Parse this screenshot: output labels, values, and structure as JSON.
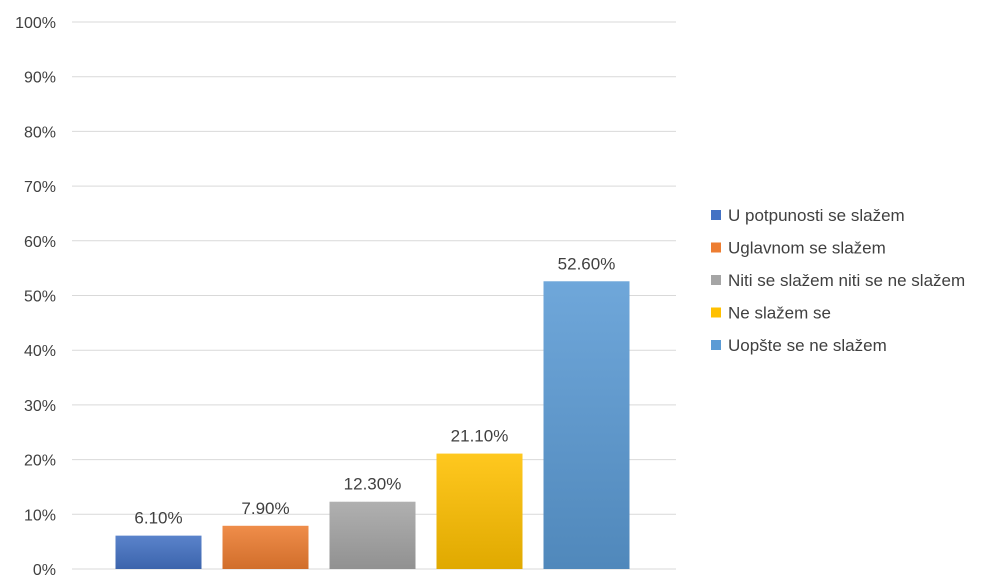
{
  "chart_data": {
    "type": "bar",
    "categories": [
      "U potpunosti se slažem",
      "Uglavnom se slažem",
      "Niti se slažem niti se ne slažem",
      "Ne slažem se",
      "Uopšte se ne slažem"
    ],
    "values": [
      6.1,
      7.9,
      12.3,
      21.1,
      52.6
    ],
    "data_labels": [
      "6.10%",
      "7.90%",
      "12.30%",
      "21.10%",
      "52.60%"
    ],
    "colors": [
      "#4472c4",
      "#ed7d31",
      "#a5a5a5",
      "#ffc000",
      "#5b9bd5"
    ],
    "ylim": [
      0,
      100
    ],
    "yticks": [
      "0%",
      "10%",
      "20%",
      "30%",
      "40%",
      "50%",
      "60%",
      "70%",
      "80%",
      "90%",
      "100%"
    ],
    "grid": true,
    "legend_position": "right",
    "title": "",
    "xlabel": "",
    "ylabel": ""
  }
}
